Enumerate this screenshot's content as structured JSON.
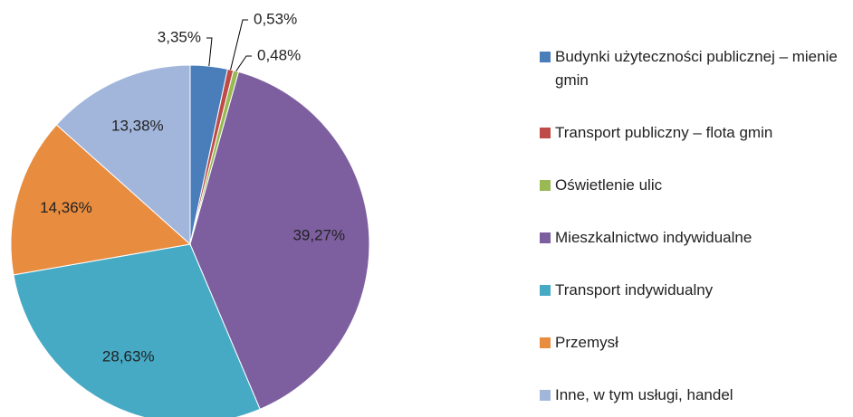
{
  "chart_data": {
    "type": "pie",
    "categories": [
      "Budynki użyteczności publicznej – mienie gmin",
      "Transport publiczny – flota gmin",
      "Oświetlenie ulic",
      "Mieszkalnictwo indywidualne",
      "Transport indywidualny",
      "Przemysł",
      "Inne, w tym usługi, handel"
    ],
    "values": [
      3.35,
      0.53,
      0.48,
      39.27,
      28.63,
      14.36,
      13.38
    ],
    "value_labels": [
      "3,35%",
      "0,53%",
      "0,48%",
      "39,27%",
      "28,63%",
      "14,36%",
      "13,38%"
    ],
    "colors": [
      "#4a7ebb",
      "#be4b48",
      "#98b954",
      "#7d5fa0",
      "#46aac5",
      "#e88c3f",
      "#a2b6dc"
    ],
    "legend": "right"
  }
}
